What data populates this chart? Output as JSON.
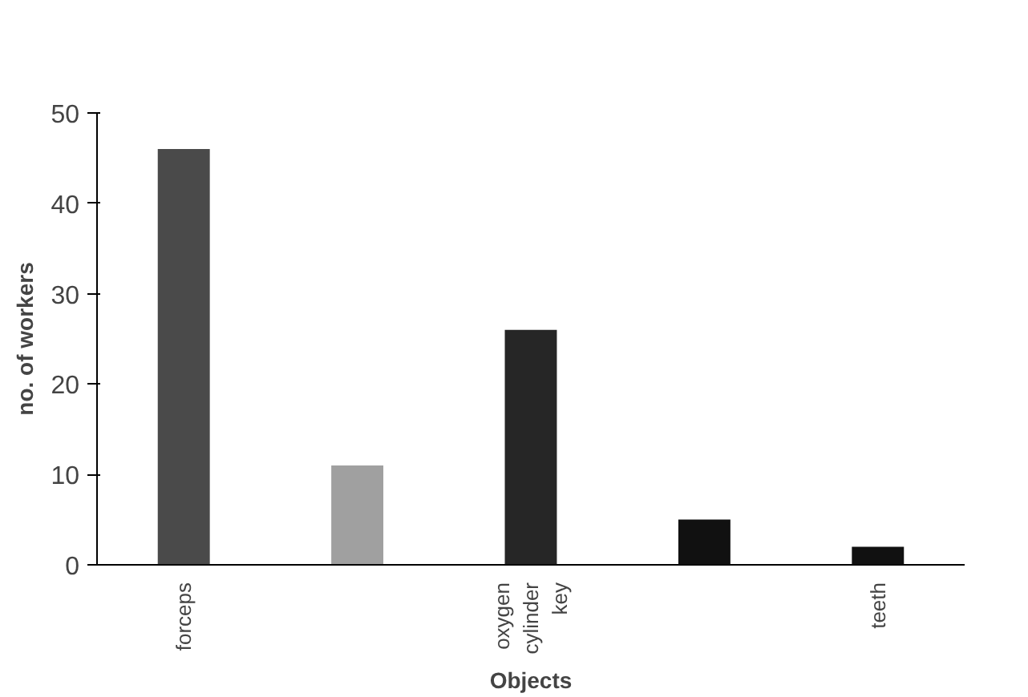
{
  "chart_data": {
    "type": "bar",
    "xlabel": "Objects",
    "ylabel": "no. of workers",
    "categories": [
      "forceps",
      null,
      "oxygen\ncylinder\nkey",
      null,
      "teeth"
    ],
    "values": [
      46,
      11,
      26,
      5,
      2
    ],
    "colors": [
      "#4a4a4a",
      "#a0a0a0",
      "#262626",
      "#111111",
      "#111111"
    ],
    "ylim": [
      0,
      50
    ],
    "yticks": [
      0,
      10,
      20,
      30,
      40,
      50
    ],
    "grid": false
  }
}
